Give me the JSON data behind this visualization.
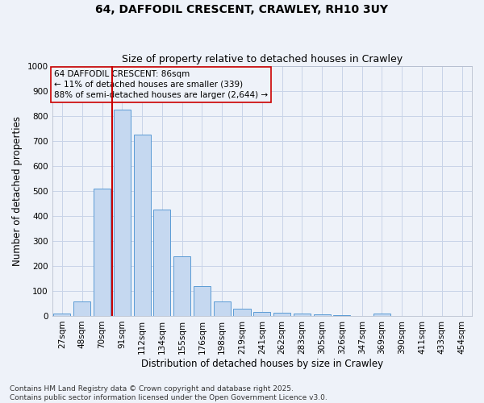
{
  "title": "64, DAFFODIL CRESCENT, CRAWLEY, RH10 3UY",
  "subtitle": "Size of property relative to detached houses in Crawley",
  "xlabel": "Distribution of detached houses by size in Crawley",
  "ylabel": "Number of detached properties",
  "bar_labels": [
    "27sqm",
    "48sqm",
    "70sqm",
    "91sqm",
    "112sqm",
    "134sqm",
    "155sqm",
    "176sqm",
    "198sqm",
    "219sqm",
    "241sqm",
    "262sqm",
    "283sqm",
    "305sqm",
    "326sqm",
    "347sqm",
    "369sqm",
    "390sqm",
    "411sqm",
    "433sqm",
    "454sqm"
  ],
  "bar_values": [
    10,
    58,
    510,
    825,
    725,
    425,
    238,
    118,
    57,
    30,
    15,
    13,
    10,
    5,
    3,
    0,
    8,
    0,
    0,
    0,
    0
  ],
  "bar_color": "#c5d8f0",
  "bar_edge_color": "#5b9bd5",
  "grid_color": "#c8d4e8",
  "background_color": "#eef2f9",
  "vline_x_index": 3,
  "vline_color": "#cc0000",
  "annotation_line1": "64 DAFFODIL CRESCENT: 86sqm",
  "annotation_line2": "← 11% of detached houses are smaller (339)",
  "annotation_line3": "88% of semi-detached houses are larger (2,644) →",
  "ylim": [
    0,
    1000
  ],
  "yticks": [
    0,
    100,
    200,
    300,
    400,
    500,
    600,
    700,
    800,
    900,
    1000
  ],
  "footer_line1": "Contains HM Land Registry data © Crown copyright and database right 2025.",
  "footer_line2": "Contains public sector information licensed under the Open Government Licence v3.0.",
  "title_fontsize": 10,
  "subtitle_fontsize": 9,
  "axis_label_fontsize": 8.5,
  "tick_fontsize": 7.5,
  "annotation_fontsize": 7.5,
  "footer_fontsize": 6.5
}
